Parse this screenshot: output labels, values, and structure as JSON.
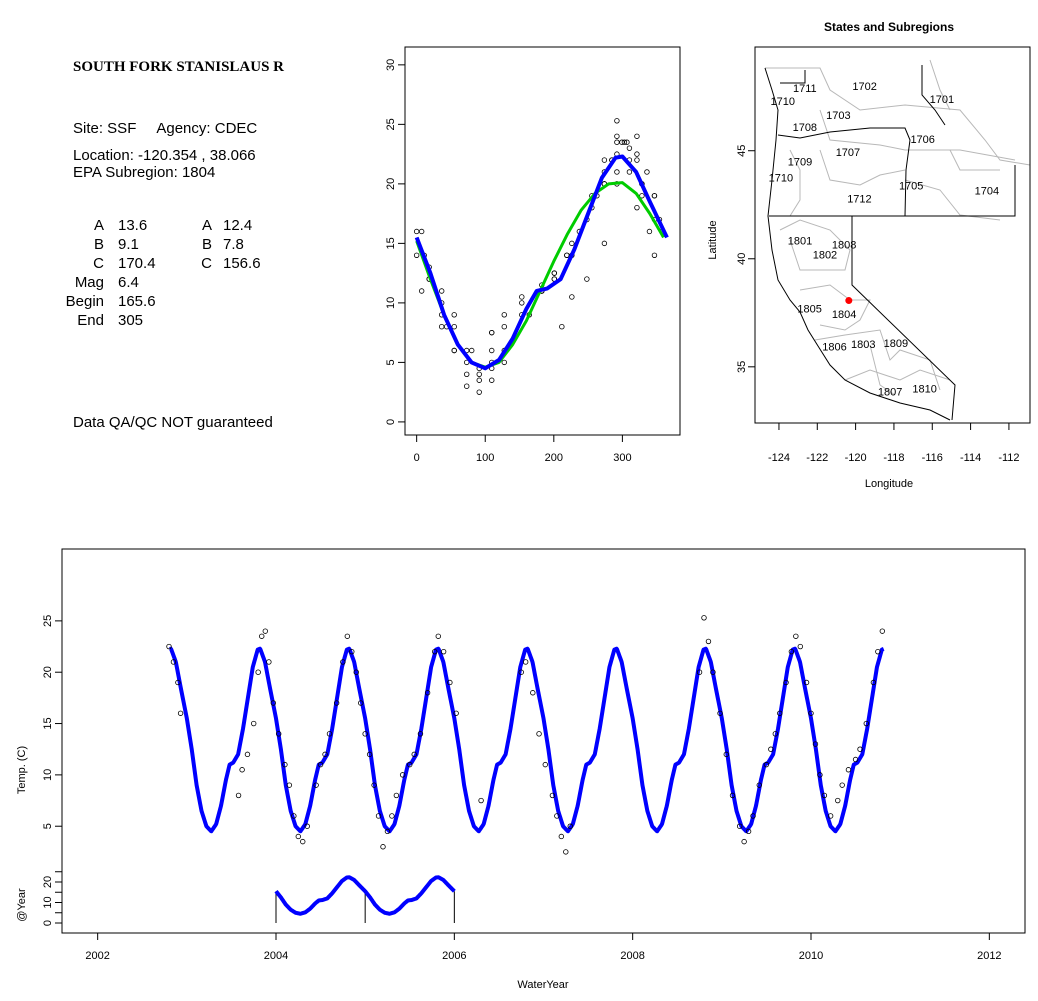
{
  "info_panel": {
    "title": "SOUTH FORK STANISLAUS R",
    "site_line": "Site: SSF     Agency: CDEC",
    "location_line": "Location: -120.354 , 38.066",
    "subregion_line": "EPA Subregion: 1804",
    "params_col1": [
      {
        "label": "A",
        "value": "13.6"
      },
      {
        "label": "B",
        "value": "9.1"
      },
      {
        "label": "C",
        "value": "170.4"
      },
      {
        "label": "Mag",
        "value": "6.4"
      },
      {
        "label": "Begin",
        "value": "165.6"
      },
      {
        "label": "End",
        "value": "305"
      }
    ],
    "params_col2": [
      {
        "label": "A",
        "value": "12.4"
      },
      {
        "label": "B",
        "value": "7.8"
      },
      {
        "label": "C",
        "value": "156.6"
      }
    ],
    "warning": "Data QA/QC NOT guaranteed",
    "warning_color": "#c0302f"
  },
  "chart_data": [
    {
      "id": "day-of-year-plot",
      "type": "scatter",
      "title": "",
      "xlabel": "",
      "ylabel": "",
      "xlim": [
        -17,
        384
      ],
      "ylim": [
        -1.1,
        31.5
      ],
      "x_ticks": [
        "0",
        "100",
        "200",
        "300"
      ],
      "y_ticks": [
        "0",
        "5",
        "10",
        "15",
        "20",
        "25",
        "30"
      ],
      "grid": false,
      "points_source": "observations (day of year)",
      "fits": [
        {
          "color": "#00cc00",
          "x": [
            0,
            20,
            40,
            60,
            80,
            100,
            120,
            140,
            160,
            180,
            200,
            220,
            240,
            260,
            280,
            300,
            320,
            340,
            360
          ],
          "y": [
            15.2,
            12,
            9,
            6.5,
            5,
            4.6,
            5,
            6.5,
            8.5,
            11,
            13.5,
            15.8,
            17.8,
            19.2,
            20,
            20.1,
            19.2,
            17.5,
            15.5
          ]
        },
        {
          "color": "#0000ff",
          "x": [
            0,
            20,
            40,
            60,
            80,
            100,
            120,
            140,
            160,
            175,
            190,
            210,
            230,
            250,
            270,
            290,
            300,
            320,
            340,
            365
          ],
          "y": [
            15.5,
            12.5,
            9,
            6.5,
            5,
            4.5,
            5.2,
            7,
            9.5,
            11,
            11.2,
            12,
            14.5,
            17.5,
            20.5,
            22.2,
            22.3,
            21,
            18.5,
            15.5
          ]
        }
      ]
    },
    {
      "id": "subregion-map",
      "type": "map",
      "title": "States and Subregions",
      "xlabel": "Longitude",
      "ylabel": "Latitude",
      "xlim": [
        -125.25,
        -110.9
      ],
      "ylim": [
        32.4,
        49.8
      ],
      "x_ticks": [
        "-124",
        "-122",
        "-120",
        "-118",
        "-116",
        "-114",
        "-112"
      ],
      "y_ticks": [
        "35",
        "40",
        "45"
      ],
      "site": {
        "lon": -120.354,
        "lat": 38.066,
        "color": "#ff0000"
      },
      "regions": [
        {
          "name": "1711",
          "lon": -122.65,
          "lat": 47.9
        },
        {
          "name": "1702",
          "lon": -119.53,
          "lat": 48.0
        },
        {
          "name": "1710",
          "lon": -123.8,
          "lat": 47.3
        },
        {
          "name": "1701",
          "lon": -115.5,
          "lat": 47.4
        },
        {
          "name": "1703",
          "lon": -120.9,
          "lat": 46.65
        },
        {
          "name": "1708",
          "lon": -122.65,
          "lat": 46.1
        },
        {
          "name": "1706",
          "lon": -116.5,
          "lat": 45.55
        },
        {
          "name": "1707",
          "lon": -120.4,
          "lat": 44.95
        },
        {
          "name": "1709",
          "lon": -122.9,
          "lat": 44.5
        },
        {
          "name": "1710",
          "lon": -123.9,
          "lat": 43.75
        },
        {
          "name": "1705",
          "lon": -117.1,
          "lat": 43.4
        },
        {
          "name": "1704",
          "lon": -113.15,
          "lat": 43.15
        },
        {
          "name": "1712",
          "lon": -119.8,
          "lat": 42.8
        },
        {
          "name": "1801",
          "lon": -122.9,
          "lat": 40.85
        },
        {
          "name": "1808",
          "lon": -120.6,
          "lat": 40.65
        },
        {
          "name": "1802",
          "lon": -121.6,
          "lat": 40.2
        },
        {
          "name": "1805",
          "lon": -122.4,
          "lat": 37.7
        },
        {
          "name": "1804",
          "lon": -120.6,
          "lat": 37.45
        },
        {
          "name": "1806",
          "lon": -121.1,
          "lat": 35.95
        },
        {
          "name": "1803",
          "lon": -119.6,
          "lat": 36.05
        },
        {
          "name": "1809",
          "lon": -117.9,
          "lat": 36.1
        },
        {
          "name": "1807",
          "lon": -118.2,
          "lat": 33.85
        },
        {
          "name": "1810",
          "lon": -116.4,
          "lat": 34.0
        }
      ]
    },
    {
      "id": "time-series-plot",
      "type": "scatter",
      "title": "",
      "xlabel": "WaterYear",
      "ylabel": "Temp. (C)",
      "inset_ylabel": "@Year",
      "xlim": [
        2001.6,
        2012.4
      ],
      "ylim": [
        -5.4,
        32
      ],
      "x_ticks": [
        "2002",
        "2004",
        "2006",
        "2008",
        "2010",
        "2012"
      ],
      "y_ticks": [
        "5",
        "10",
        "15",
        "20",
        "25"
      ],
      "inset_y_ticks": [
        "0",
        "10",
        "20"
      ],
      "grid": false,
      "fit_color": "#0000ff",
      "fit_range": [
        2002.81,
        2010.82
      ],
      "inset_range": [
        2004,
        2006
      ],
      "observations": {
        "t": [
          2002.8,
          2002.85,
          2002.9,
          2002.93,
          2003.58,
          2003.62,
          2003.68,
          2003.75,
          2003.8,
          2003.84,
          2003.88,
          2003.92,
          2003.97,
          2004.03,
          2004.1,
          2004.15,
          2004.2,
          2004.25,
          2004.3,
          2004.35,
          2004.45,
          2004.5,
          2004.55,
          2004.6,
          2004.68,
          2004.75,
          2004.8,
          2004.85,
          2004.9,
          2004.95,
          2005.0,
          2005.05,
          2005.1,
          2005.15,
          2005.2,
          2005.25,
          2005.3,
          2005.35,
          2005.42,
          2005.5,
          2005.55,
          2005.62,
          2005.7,
          2005.78,
          2005.82,
          2005.88,
          2005.95,
          2006.02,
          2006.3,
          2006.75,
          2006.8,
          2006.88,
          2006.95,
          2007.02,
          2007.1,
          2007.15,
          2007.2,
          2007.25,
          2007.3,
          2008.75,
          2008.8,
          2008.85,
          2008.9,
          2008.98,
          2009.05,
          2009.12,
          2009.2,
          2009.25,
          2009.3,
          2009.35,
          2009.42,
          2009.5,
          2009.55,
          2009.6,
          2009.65,
          2009.72,
          2009.78,
          2009.83,
          2009.88,
          2009.95,
          2010.0,
          2010.05,
          2010.1,
          2010.15,
          2010.22,
          2010.3,
          2010.35,
          2010.42,
          2010.5,
          2010.55,
          2010.62,
          2010.7,
          2010.75,
          2010.8
        ],
        "temp": [
          22.5,
          21,
          19,
          16,
          8,
          10.5,
          12,
          15,
          20,
          23.5,
          24,
          21,
          17,
          14,
          11,
          9,
          6,
          4,
          3.5,
          5,
          9,
          11,
          12,
          14,
          17,
          21,
          23.5,
          22,
          20,
          17,
          14,
          12,
          9,
          6,
          3,
          4.5,
          6,
          8,
          10,
          11,
          12,
          14,
          18,
          22,
          23.5,
          22,
          19,
          16,
          7.5,
          20,
          21,
          18,
          14,
          11,
          8,
          6,
          4,
          2.5,
          5,
          20,
          25.3,
          23,
          20,
          16,
          12,
          8,
          5,
          3.5,
          4.5,
          6,
          9,
          11,
          12.5,
          14,
          16,
          19,
          22,
          23.5,
          22.5,
          19,
          16,
          13,
          10,
          8,
          6,
          7.5,
          9,
          10.5,
          11.5,
          12.5,
          15,
          19,
          22,
          24
        ]
      }
    }
  ]
}
